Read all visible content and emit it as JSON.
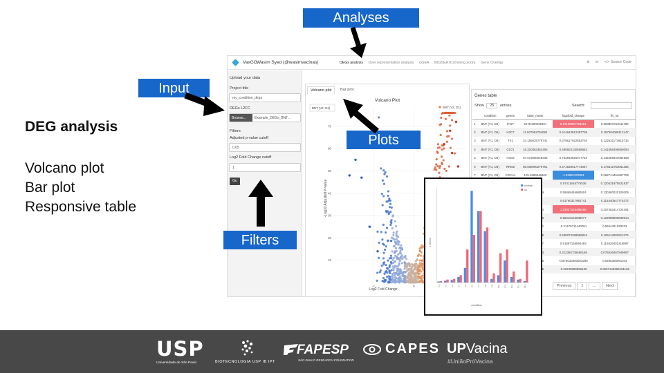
{
  "slide": {
    "deg_title": "DEG analysis",
    "features": [
      "Volcano plot",
      "Bar plot",
      "Responsive table"
    ],
    "callouts": {
      "analyses": "Analyses",
      "input": "Input",
      "plots": "Plots",
      "filters": "Filters"
    }
  },
  "app": {
    "brand": "VaxGO",
    "user": "Wasim Syed (@wasimvacinas)",
    "tabs": [
      {
        "label": "DEGs analysis",
        "active": true
      },
      {
        "label": "Over representation analysis",
        "active": false
      },
      {
        "label": "GSEA",
        "active": false
      },
      {
        "label": "fotGSEA (Comming soon)",
        "active": false
      },
      {
        "label": "Gene Overlap",
        "active": false
      }
    ],
    "nav_right": {
      "settings_icon": "gear-icon",
      "linkedin": "in",
      "source": "</> Source Code"
    },
    "sidebar": {
      "upload_heading": "Upload your data",
      "project_title_label": "Project title",
      "project_title_value": "my_condition_degs",
      "degs_label": "DEGs L2FC",
      "browse_label": "Browse...",
      "file_name": "Example_DEGs_BNT...",
      "filters_heading": "Filters",
      "pvalue_label": "Adjusted p-value cutoff",
      "pvalue_value": "0.05",
      "l2fc_label": "Log2 Fold Change cutoff",
      "l2fc_value": "1",
      "go_label": "Go"
    },
    "plot_tabs": [
      {
        "label": "Volcano plot",
        "active": true
      },
      {
        "label": "Bar plot",
        "active": false
      }
    ],
    "volcano": {
      "title": "Volcano Plot",
      "dropdown_value": "BNT (V2, D1)",
      "legend_label": "BNT (V2, D1)",
      "xlabel": "Log2 Fold Change",
      "ylabel": "-Log10 Adjusted P-value",
      "x_ticks": [
        "-1",
        "0"
      ],
      "y_ticks": [
        "10",
        "20",
        "30",
        "40",
        "50",
        "60",
        "70"
      ]
    },
    "table": {
      "title": "Genes table",
      "show_label": "Show",
      "entries_value": "25",
      "entries_label": "entries",
      "search_label": "Search:",
      "columns": [
        "",
        "condition",
        "genes",
        "base_mean",
        "log2fold_change",
        "lfc_se"
      ],
      "rows": [
        [
          "1",
          "BNT (V1, D6)",
          "IFI27",
          "5478.600029467",
          "2.37109967763361",
          "0.253807044011782"
        ],
        [
          "2",
          "BNT (V1, D6)",
          "H3C7",
          "11.507962784082",
          "0.614643812387708",
          "0.187004089112147"
        ],
        [
          "3",
          "BNT (V1, D6)",
          "TK1",
          "24.156625779741",
          "0.379617922853704",
          "0.122631174815716"
        ],
        [
          "4",
          "BNT (V1, D6)",
          "CD71",
          "16.320363362456",
          "0.695503130658662",
          "0.141066496669054"
        ],
        [
          "5",
          "BNT (V1, D6)",
          "H3C8",
          "57.673060028335",
          "0.752943820077703",
          "0.145285944084568"
        ],
        [
          "6",
          "BNT (V1, D6)",
          "RRM2",
          "85.068900279761",
          "0.571538017774057",
          "0.175542763061186"
        ],
        [
          "7",
          "BNT (V1, D6)",
          "CDCA1",
          "125.4589946660",
          "-1.02891378651",
          "0.268714464667706"
        ],
        [
          "8",
          "",
          "",
          "7284680",
          "0.57411648775538",
          "0.120431975521837"
        ],
        [
          "9",
          "",
          "",
          "7925095349",
          "0.55865446880504",
          "0.130360020109205"
        ],
        [
          "10",
          "",
          "",
          "4220135",
          "0.61760317962741",
          "0.115440547774472"
        ],
        [
          "11",
          "",
          "",
          "6741426090",
          "1.33027416498286",
          "0.307482414724491"
        ],
        [
          "12",
          "",
          "",
          "6684966689",
          "0.55018122938977",
          "0.123988080839814"
        ],
        [
          "13",
          "",
          "",
          "6843611054",
          "-0.21470711440051",
          "0.0654401030333"
        ],
        [
          "14",
          "",
          "",
          "8777841536",
          "0.508073298986816",
          "0.106114082621376"
        ],
        [
          "15",
          "",
          "",
          "8828969797",
          "0.51887156894483",
          "0.116626402318897"
        ],
        [
          "16",
          "",
          "",
          "9948128323",
          "0.312365735666186",
          "0.075526467849697"
        ],
        [
          "17",
          "",
          "",
          "8868295505",
          "-0.875033393003289",
          "0.0280308091043"
        ],
        [
          "18",
          "",
          "",
          "2915199005",
          "-0.32230589959139",
          "0.0567149686151102"
        ]
      ],
      "pager": [
        "Previous",
        "1",
        "...",
        "Next"
      ]
    }
  },
  "barplot": {
    "legend": [
      "neutrals",
      "up"
    ],
    "xlabel": "condition",
    "ylabel": "# Genes",
    "colors": {
      "down": "#4a8fe6",
      "up": "#f26874"
    }
  },
  "chart_data": {
    "type": "bar",
    "title": "",
    "xlabel": "condition",
    "ylabel": "# Genes",
    "ylim": [
      0,
      2600
    ],
    "categories": [
      "C1",
      "C2",
      "C3",
      "C4",
      "C5",
      "C6",
      "C7",
      "C8",
      "C9",
      "C10",
      "C11",
      "C12",
      "C13",
      "C14"
    ],
    "series": [
      {
        "name": "neutrals",
        "values": [
          30,
          50,
          70,
          150,
          400,
          2500,
          1950,
          1400,
          100,
          200,
          600,
          150,
          80,
          40
        ]
      },
      {
        "name": "up",
        "values": [
          40,
          80,
          100,
          200,
          900,
          1300,
          1950,
          1500,
          250,
          800,
          900,
          300,
          100,
          600
        ]
      }
    ]
  },
  "footer": {
    "usp": "USP",
    "usp_sub": "Universidade de São Paulo",
    "bio": "BIOTECNOLOGIA USP IB IPT",
    "fapesp": "FAPESP",
    "fapesp_sub": "SÃO PAULO RESEARCH FOUNDATION",
    "capes": "CAPES",
    "upv_up": "UP",
    "upv_rest": "Vacina",
    "upv_sub": "#UniãoPróVacina"
  }
}
